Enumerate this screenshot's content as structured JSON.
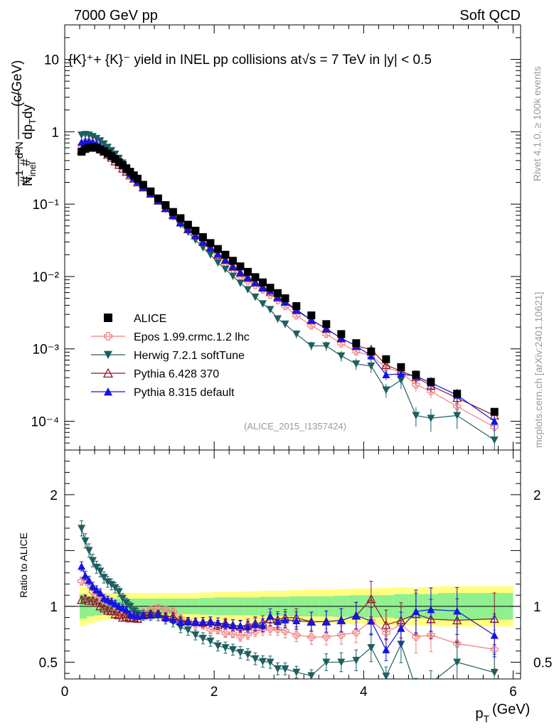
{
  "header": {
    "left": "7000 GeV pp",
    "right": "Soft QCD"
  },
  "side_labels": {
    "rivet": "Rivet 4.1.0, ≥ 100k events",
    "mcplots": "mcplots.cern.ch [arXiv:2401.10621]"
  },
  "plot_title": "{K}⁺+ {K}⁻ yield in INEL pp collisions at√s =  7 TeV in |y| < 0.5",
  "analysis_tag": "(ALICE_2015_I1357424)",
  "ylabel_main": "(1/N_inel) d²N/dp_T dy (c/GeV)",
  "ylabel_main_unit": "(c/GeV)",
  "ylabel_ratio": "Ratio to ALICE",
  "xlabel": "p_T (GeV)",
  "xlabel_unit": "(GeV)",
  "colors": {
    "alice": "#000000",
    "epos": "#f08080",
    "herwig": "#1e5f5f",
    "pythia6": "#8b1a2a",
    "pythia8": "#1515e0",
    "band_outer": "#ffff80",
    "band_inner": "#90f090"
  },
  "chart_data": [
    {
      "type": "scatter",
      "panel": "main",
      "title": "{K}⁺+ {K}⁻ yield in INEL pp collisions at √s = 7 TeV in |y| < 0.5",
      "xlabel": "p_T (GeV)",
      "ylabel": "1/N_inel d²N/dp_T dy (c/GeV)",
      "yscale": "log",
      "xlim": [
        0,
        6.1
      ],
      "ylim": [
        4e-05,
        30
      ],
      "x_ticks": [
        "0",
        "2",
        "4",
        "6"
      ],
      "y_ticks": [
        "10⁻⁴",
        "10⁻³",
        "10⁻²",
        "10⁻¹",
        "1",
        "10"
      ],
      "legend_position": "middle-left",
      "series": [
        {
          "name": "ALICE",
          "marker": "square",
          "x": [
            0.225,
            0.275,
            0.325,
            0.375,
            0.425,
            0.475,
            0.525,
            0.575,
            0.625,
            0.675,
            0.725,
            0.775,
            0.825,
            0.875,
            0.925,
            0.975,
            1.05,
            1.15,
            1.25,
            1.35,
            1.45,
            1.55,
            1.65,
            1.75,
            1.85,
            1.95,
            2.05,
            2.15,
            2.25,
            2.35,
            2.45,
            2.55,
            2.65,
            2.75,
            2.85,
            2.95,
            3.1,
            3.3,
            3.5,
            3.7,
            3.9,
            4.1,
            4.3,
            4.5,
            4.7,
            4.9,
            5.25,
            5.75
          ],
          "values": [
            0.53,
            0.58,
            0.6,
            0.61,
            0.6,
            0.57,
            0.54,
            0.5,
            0.46,
            0.42,
            0.38,
            0.345,
            0.31,
            0.28,
            0.25,
            0.225,
            0.185,
            0.15,
            0.12,
            0.097,
            0.078,
            0.064,
            0.052,
            0.043,
            0.035,
            0.029,
            0.024,
            0.02,
            0.0165,
            0.0138,
            0.0116,
            0.0098,
            0.0083,
            0.007,
            0.0059,
            0.005,
            0.0039,
            0.0029,
            0.0022,
            0.0016,
            0.0012,
            0.00092,
            0.00072,
            0.00056,
            0.00044,
            0.00035,
            0.00024,
            0.000135
          ]
        },
        {
          "name": "Epos 1.99.crmc.1.2 lhc",
          "marker": "open-cross",
          "x": [
            0.225,
            0.275,
            0.325,
            0.375,
            0.425,
            0.475,
            0.525,
            0.575,
            0.625,
            0.675,
            0.725,
            0.775,
            0.825,
            0.875,
            0.925,
            0.975,
            1.05,
            1.15,
            1.25,
            1.35,
            1.45,
            1.55,
            1.65,
            1.75,
            1.85,
            1.95,
            2.05,
            2.15,
            2.25,
            2.35,
            2.45,
            2.55,
            2.65,
            2.75,
            2.85,
            2.95,
            3.1,
            3.3,
            3.5,
            3.7,
            3.9,
            4.1,
            4.3,
            4.5,
            4.7,
            4.9,
            5.25,
            5.75
          ],
          "values": [
            0.65,
            0.72,
            0.72,
            0.69,
            0.66,
            0.62,
            0.57,
            0.52,
            0.47,
            0.42,
            0.37,
            0.33,
            0.29,
            0.26,
            0.23,
            0.205,
            0.175,
            0.145,
            0.118,
            0.094,
            0.074,
            0.057,
            0.045,
            0.036,
            0.029,
            0.023,
            0.019,
            0.0152,
            0.0125,
            0.0101,
            0.0087,
            0.0076,
            0.0066,
            0.0056,
            0.0047,
            0.0039,
            0.0029,
            0.0021,
            0.0016,
            0.00119,
            0.00092,
            0.0008,
            0.00055,
            0.00047,
            0.00032,
            0.00026,
            0.00016,
            8.3e-05
          ],
          "errors": [
            0.03,
            0.03,
            0.03,
            0.03,
            0.03,
            0.03,
            0.03,
            0.03,
            0.03,
            0.03,
            0.03,
            0.03,
            0.03,
            0.03,
            0.03,
            0.03,
            0.03,
            0.03,
            0.03,
            0.03,
            0.04,
            0.04,
            0.04,
            0.04,
            0.04,
            0.05,
            0.05,
            0.05,
            0.05,
            0.06,
            0.06,
            0.06,
            0.07,
            0.07,
            0.07,
            0.08,
            0.08,
            0.09,
            0.1,
            0.11,
            0.12,
            0.15,
            0.16,
            0.18,
            0.2,
            0.2,
            0.22,
            0.28
          ]
        },
        {
          "name": "Herwig 7.2.1 softTune",
          "marker": "filled-triangle-down",
          "x": [
            0.225,
            0.275,
            0.325,
            0.375,
            0.425,
            0.475,
            0.525,
            0.575,
            0.625,
            0.675,
            0.725,
            0.775,
            0.825,
            0.875,
            0.925,
            0.975,
            1.05,
            1.15,
            1.25,
            1.35,
            1.45,
            1.55,
            1.65,
            1.75,
            1.85,
            1.95,
            2.05,
            2.15,
            2.25,
            2.35,
            2.45,
            2.55,
            2.65,
            2.75,
            2.85,
            2.95,
            3.1,
            3.3,
            3.5,
            3.7,
            3.9,
            4.1,
            4.3,
            4.5,
            4.7,
            4.9,
            5.25,
            5.75
          ],
          "values": [
            0.9,
            0.92,
            0.9,
            0.86,
            0.81,
            0.75,
            0.68,
            0.61,
            0.55,
            0.49,
            0.43,
            0.37,
            0.32,
            0.28,
            0.24,
            0.21,
            0.17,
            0.138,
            0.11,
            0.086,
            0.067,
            0.052,
            0.041,
            0.032,
            0.025,
            0.02,
            0.0155,
            0.0126,
            0.0101,
            0.0081,
            0.0066,
            0.0052,
            0.0042,
            0.0035,
            0.0026,
            0.0022,
            0.0016,
            0.0011,
            0.0011,
            0.0008,
            0.00062,
            0.00058,
            0.00027,
            0.00037,
            0.00012,
            0.00011,
            0.00012,
            5.5e-05
          ],
          "errors": [
            0.04,
            0.04,
            0.04,
            0.04,
            0.04,
            0.04,
            0.04,
            0.04,
            0.04,
            0.04,
            0.04,
            0.04,
            0.04,
            0.04,
            0.04,
            0.05,
            0.05,
            0.05,
            0.05,
            0.05,
            0.05,
            0.06,
            0.06,
            0.06,
            0.07,
            0.07,
            0.07,
            0.08,
            0.08,
            0.09,
            0.09,
            0.1,
            0.1,
            0.11,
            0.12,
            0.12,
            0.13,
            0.14,
            0.15,
            0.17,
            0.18,
            0.2,
            0.22,
            0.25,
            0.3,
            0.35,
            0.35,
            0.4
          ]
        },
        {
          "name": "Pythia 6.428 370",
          "marker": "open-triangle-up",
          "x": [
            0.225,
            0.275,
            0.325,
            0.375,
            0.425,
            0.475,
            0.525,
            0.575,
            0.625,
            0.675,
            0.725,
            0.775,
            0.825,
            0.875,
            0.925,
            0.975,
            1.05,
            1.15,
            1.25,
            1.35,
            1.45,
            1.55,
            1.65,
            1.75,
            1.85,
            1.95,
            2.05,
            2.15,
            2.25,
            2.35,
            2.45,
            2.55,
            2.65,
            2.75,
            2.85,
            2.95,
            3.1,
            3.3,
            3.5,
            3.7,
            3.9,
            4.1,
            4.3,
            4.5,
            4.7,
            4.9,
            5.25,
            5.75
          ],
          "values": [
            0.56,
            0.62,
            0.63,
            0.64,
            0.62,
            0.57,
            0.53,
            0.48,
            0.44,
            0.39,
            0.35,
            0.31,
            0.28,
            0.25,
            0.225,
            0.2,
            0.17,
            0.14,
            0.112,
            0.088,
            0.071,
            0.056,
            0.045,
            0.037,
            0.03,
            0.025,
            0.02,
            0.017,
            0.0137,
            0.0113,
            0.0097,
            0.0083,
            0.0071,
            0.0062,
            0.0052,
            0.0045,
            0.0035,
            0.0025,
            0.0019,
            0.0014,
            0.0011,
            0.00098,
            0.0006,
            0.00049,
            0.00041,
            0.00031,
            0.00021,
            0.00012
          ],
          "errors": [
            0.03,
            0.03,
            0.03,
            0.03,
            0.03,
            0.03,
            0.03,
            0.03,
            0.03,
            0.03,
            0.03,
            0.03,
            0.03,
            0.03,
            0.03,
            0.03,
            0.03,
            0.03,
            0.03,
            0.04,
            0.04,
            0.04,
            0.04,
            0.04,
            0.05,
            0.05,
            0.05,
            0.05,
            0.06,
            0.06,
            0.06,
            0.07,
            0.07,
            0.07,
            0.08,
            0.08,
            0.09,
            0.1,
            0.11,
            0.12,
            0.13,
            0.15,
            0.16,
            0.18,
            0.2,
            0.2,
            0.22,
            0.26
          ]
        },
        {
          "name": "Pythia 8.315 default",
          "marker": "filled-triangle-up",
          "x": [
            0.225,
            0.275,
            0.325,
            0.375,
            0.425,
            0.475,
            0.525,
            0.575,
            0.625,
            0.675,
            0.725,
            0.775,
            0.825,
            0.875,
            0.925,
            0.975,
            1.05,
            1.15,
            1.25,
            1.35,
            1.45,
            1.55,
            1.65,
            1.75,
            1.85,
            1.95,
            2.05,
            2.15,
            2.25,
            2.35,
            2.45,
            2.55,
            2.65,
            2.75,
            2.85,
            2.95,
            3.1,
            3.3,
            3.5,
            3.7,
            3.9,
            4.1,
            4.3,
            4.5,
            4.7,
            4.9,
            5.25,
            5.75
          ],
          "values": [
            0.72,
            0.74,
            0.74,
            0.72,
            0.69,
            0.64,
            0.58,
            0.53,
            0.48,
            0.43,
            0.38,
            0.34,
            0.3,
            0.26,
            0.23,
            0.205,
            0.17,
            0.138,
            0.111,
            0.087,
            0.069,
            0.055,
            0.045,
            0.037,
            0.03,
            0.025,
            0.0205,
            0.0168,
            0.0137,
            0.0114,
            0.0095,
            0.0082,
            0.0069,
            0.0064,
            0.0051,
            0.0044,
            0.0034,
            0.0025,
            0.0019,
            0.0014,
            0.0011,
            0.0008,
            0.00044,
            0.00045,
            0.00042,
            0.00034,
            0.00023,
            0.0001
          ],
          "errors": [
            0.03,
            0.03,
            0.03,
            0.03,
            0.03,
            0.03,
            0.03,
            0.03,
            0.03,
            0.03,
            0.03,
            0.03,
            0.03,
            0.03,
            0.03,
            0.03,
            0.03,
            0.03,
            0.03,
            0.04,
            0.04,
            0.04,
            0.04,
            0.04,
            0.05,
            0.05,
            0.05,
            0.05,
            0.06,
            0.06,
            0.06,
            0.07,
            0.07,
            0.07,
            0.08,
            0.08,
            0.09,
            0.1,
            0.11,
            0.12,
            0.13,
            0.14,
            0.16,
            0.18,
            0.2,
            0.2,
            0.22,
            0.26
          ]
        }
      ]
    },
    {
      "type": "scatter",
      "panel": "ratio",
      "ylabel": "Ratio to ALICE",
      "xlabel": "p_T (GeV)",
      "xlim": [
        0,
        6.1
      ],
      "ylim": [
        0.35,
        2.4
      ],
      "x_ticks": [
        "0",
        "2",
        "4",
        "6"
      ],
      "y_ticks": [
        "0.5",
        "1",
        "2"
      ],
      "reference_line": 1,
      "band_edges": [
        0.2,
        0.3,
        0.4,
        0.5,
        0.6,
        0.7,
        0.8,
        1.0,
        1.2,
        1.4,
        1.6,
        1.8,
        2.0,
        2.2,
        2.4,
        2.6,
        2.8,
        3.0,
        3.2,
        3.4,
        3.6,
        3.8,
        4.0,
        4.2,
        4.4,
        4.6,
        4.8,
        5.0,
        5.5,
        6.0
      ],
      "band_outer": [
        0.17,
        0.15,
        0.13,
        0.12,
        0.12,
        0.12,
        0.12,
        0.12,
        0.12,
        0.12,
        0.12,
        0.125,
        0.13,
        0.13,
        0.135,
        0.14,
        0.14,
        0.145,
        0.15,
        0.15,
        0.155,
        0.16,
        0.16,
        0.165,
        0.17,
        0.17,
        0.175,
        0.18,
        0.18
      ],
      "band_inner": [
        0.11,
        0.09,
        0.08,
        0.07,
        0.07,
        0.07,
        0.07,
        0.07,
        0.07,
        0.07,
        0.07,
        0.075,
        0.08,
        0.08,
        0.08,
        0.085,
        0.085,
        0.09,
        0.09,
        0.09,
        0.095,
        0.1,
        0.1,
        0.1,
        0.11,
        0.11,
        0.11,
        0.12,
        0.12
      ]
    }
  ]
}
